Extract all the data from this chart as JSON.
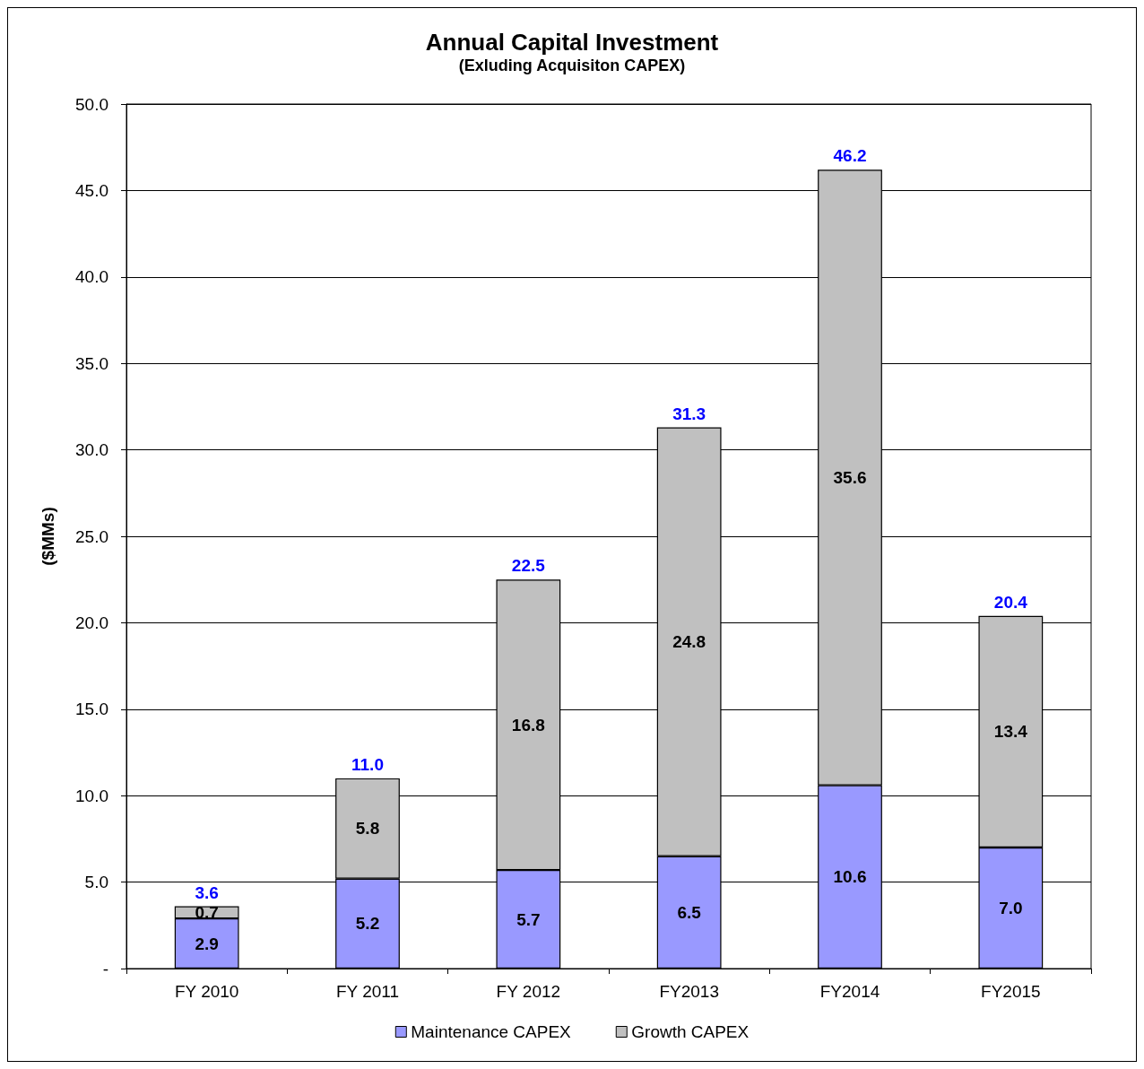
{
  "chart_data": {
    "type": "bar",
    "title": "Annual Capital Investment",
    "subtitle": "(Exluding Acquisiton CAPEX)",
    "ylabel": "($MMs)",
    "categories": [
      "FY 2010",
      "FY 2011",
      "FY 2012",
      "FY2013",
      "FY2014",
      "FY2015"
    ],
    "series": [
      {
        "name": "Maintenance CAPEX",
        "color": "#9999ff",
        "values": [
          2.9,
          5.2,
          5.7,
          6.5,
          10.6,
          7.0
        ],
        "value_labels": [
          "2.9",
          "5.2",
          "5.7",
          "6.5",
          "10.6",
          "7.0"
        ]
      },
      {
        "name": "Growth CAPEX",
        "color": "#c0c0c0",
        "values": [
          0.7,
          5.8,
          16.8,
          24.8,
          35.6,
          13.4
        ],
        "value_labels": [
          "0.7",
          "5.8",
          "16.8",
          "24.8",
          "35.6",
          "13.4"
        ]
      }
    ],
    "stacked": true,
    "totals": [
      "3.6",
      "11.0",
      "22.5",
      "31.3",
      "46.2",
      "20.4"
    ],
    "ylim": [
      0,
      50
    ],
    "yticks": [
      {
        "value": 0,
        "label": "-"
      },
      {
        "value": 5,
        "label": "5.0"
      },
      {
        "value": 10,
        "label": "10.0"
      },
      {
        "value": 15,
        "label": "15.0"
      },
      {
        "value": 20,
        "label": "20.0"
      },
      {
        "value": 25,
        "label": "25.0"
      },
      {
        "value": 30,
        "label": "30.0"
      },
      {
        "value": 35,
        "label": "35.0"
      },
      {
        "value": 40,
        "label": "40.0"
      },
      {
        "value": 45,
        "label": "45.0"
      },
      {
        "value": 50,
        "label": "50.0"
      }
    ],
    "grid": "y",
    "legend": "bottom"
  }
}
